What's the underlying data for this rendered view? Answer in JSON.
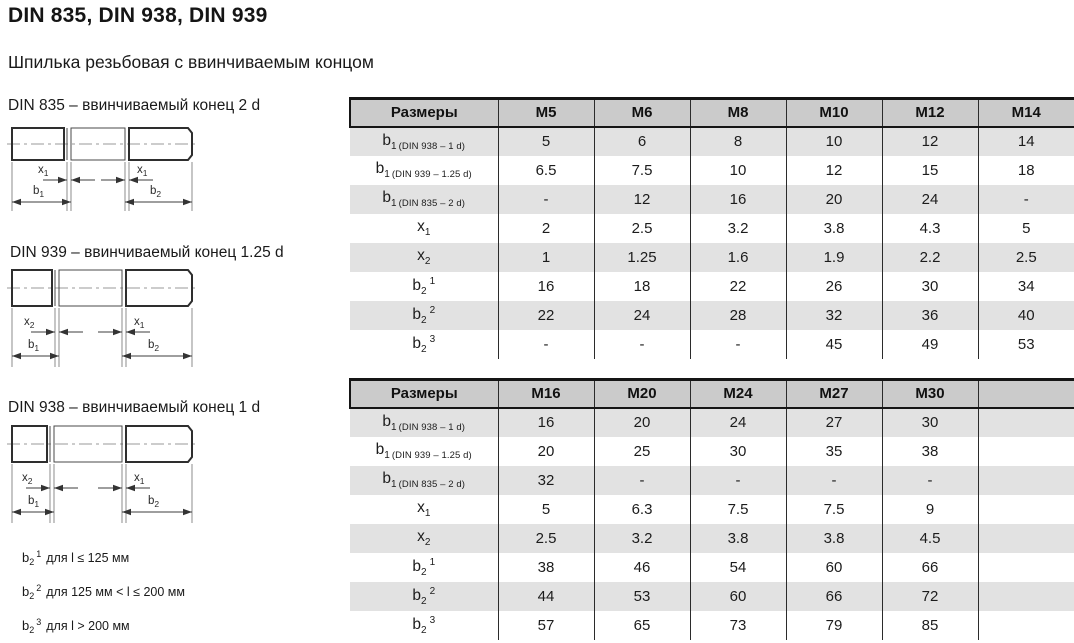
{
  "page": {
    "title": "DIN 835, DIN 938, DIN 939",
    "subtitle": "Шпилька резьбовая с ввинчиваемым концом"
  },
  "colors": {
    "header_row_bg": "#cbcbcb",
    "shaded_row_bg": "#e2e2e2",
    "table_border": "#1a1a1a"
  },
  "drawings": [
    {
      "caption": "DIN 835 – ввинчиваемый конец 2 d",
      "dims": {
        "left_x": {
          "base": "x",
          "sub": "1"
        },
        "right_x": {
          "base": "x",
          "sub": "1"
        },
        "left_b": {
          "base": "b",
          "sub": "1"
        },
        "right_b": {
          "base": "b",
          "sub": "2"
        }
      }
    },
    {
      "caption": "DIN 939 – ввинчиваемый конец 1.25 d",
      "dims": {
        "left_x": {
          "base": "x",
          "sub": "2"
        },
        "right_x": {
          "base": "x",
          "sub": "1"
        },
        "left_b": {
          "base": "b",
          "sub": "1"
        },
        "right_b": {
          "base": "b",
          "sub": "2"
        }
      }
    },
    {
      "caption": "DIN 938 – ввинчиваемый конец 1 d",
      "dims": {
        "left_x": {
          "base": "x",
          "sub": "2"
        },
        "right_x": {
          "base": "x",
          "sub": "1"
        },
        "left_b": {
          "base": "b",
          "sub": "1"
        },
        "right_b": {
          "base": "b",
          "sub": "2"
        }
      }
    }
  ],
  "footnotes": [
    {
      "base": "b",
      "sub": "2",
      "sup": "1",
      "text": "для l ≤ 125 мм"
    },
    {
      "base": "b",
      "sub": "2",
      "sup": "2",
      "text": "для 125 мм < l ≤ 200 мм"
    },
    {
      "base": "b",
      "sub": "2",
      "sup": "3",
      "text": "для l > 200 мм"
    }
  ],
  "tables": [
    {
      "columns": [
        "Размеры",
        "M5",
        "M6",
        "M8",
        "M10",
        "M12",
        "M14"
      ],
      "rows": [
        {
          "label": {
            "base": "b",
            "sub": "1",
            "note": "(DIN 938 – 1 d)"
          },
          "values": [
            "5",
            "6",
            "8",
            "10",
            "12",
            "14"
          ]
        },
        {
          "label": {
            "base": "b",
            "sub": "1",
            "note": "(DIN 939 – 1.25 d)"
          },
          "values": [
            "6.5",
            "7.5",
            "10",
            "12",
            "15",
            "18"
          ]
        },
        {
          "label": {
            "base": "b",
            "sub": "1",
            "note": "(DIN 835 – 2 d)"
          },
          "values": [
            "-",
            "12",
            "16",
            "20",
            "24",
            "-"
          ]
        },
        {
          "label": {
            "base": "x",
            "sub": "1"
          },
          "values": [
            "2",
            "2.5",
            "3.2",
            "3.8",
            "4.3",
            "5"
          ]
        },
        {
          "label": {
            "base": "x",
            "sub": "2"
          },
          "values": [
            "1",
            "1.25",
            "1.6",
            "1.9",
            "2.2",
            "2.5"
          ]
        },
        {
          "label": {
            "base": "b",
            "sub": "2",
            "sup": "1"
          },
          "values": [
            "16",
            "18",
            "22",
            "26",
            "30",
            "34"
          ]
        },
        {
          "label": {
            "base": "b",
            "sub": "2",
            "sup": "2"
          },
          "values": [
            "22",
            "24",
            "28",
            "32",
            "36",
            "40"
          ]
        },
        {
          "label": {
            "base": "b",
            "sub": "2",
            "sup": "3"
          },
          "values": [
            "-",
            "-",
            "-",
            "45",
            "49",
            "53"
          ]
        }
      ]
    },
    {
      "columns": [
        "Размеры",
        "M16",
        "M20",
        "M24",
        "M27",
        "M30",
        ""
      ],
      "rows": [
        {
          "label": {
            "base": "b",
            "sub": "1",
            "note": "(DIN 938 – 1 d)"
          },
          "values": [
            "16",
            "20",
            "24",
            "27",
            "30",
            ""
          ]
        },
        {
          "label": {
            "base": "b",
            "sub": "1",
            "note": "(DIN 939 – 1.25 d)"
          },
          "values": [
            "20",
            "25",
            "30",
            "35",
            "38",
            ""
          ]
        },
        {
          "label": {
            "base": "b",
            "sub": "1",
            "note": "(DIN 835 – 2 d)"
          },
          "values": [
            "32",
            "-",
            "-",
            "-",
            "-",
            ""
          ]
        },
        {
          "label": {
            "base": "x",
            "sub": "1"
          },
          "values": [
            "5",
            "6.3",
            "7.5",
            "7.5",
            "9",
            ""
          ]
        },
        {
          "label": {
            "base": "x",
            "sub": "2"
          },
          "values": [
            "2.5",
            "3.2",
            "3.8",
            "3.8",
            "4.5",
            ""
          ]
        },
        {
          "label": {
            "base": "b",
            "sub": "2",
            "sup": "1"
          },
          "values": [
            "38",
            "46",
            "54",
            "60",
            "66",
            ""
          ]
        },
        {
          "label": {
            "base": "b",
            "sub": "2",
            "sup": "2"
          },
          "values": [
            "44",
            "53",
            "60",
            "66",
            "72",
            ""
          ]
        },
        {
          "label": {
            "base": "b",
            "sub": "2",
            "sup": "3"
          },
          "values": [
            "57",
            "65",
            "73",
            "79",
            "85",
            ""
          ]
        }
      ]
    }
  ]
}
